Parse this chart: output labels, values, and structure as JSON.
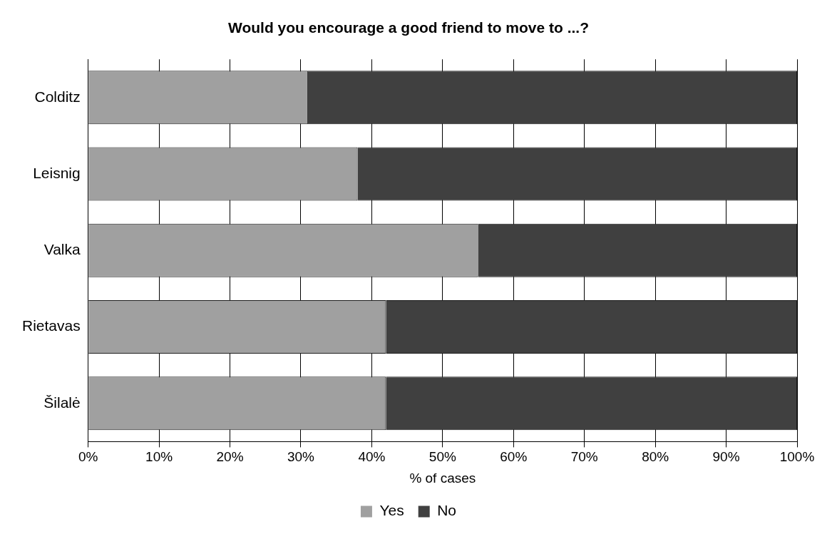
{
  "chart_data": {
    "type": "bar",
    "orientation": "horizontal",
    "stacked": true,
    "title": "Would you encourage a good friend to move to ...?",
    "xlabel": "% of cases",
    "categories": [
      "Colditz",
      "Leisnig",
      "Valka",
      "Rietavas",
      "Šilalė"
    ],
    "series": [
      {
        "name": "Yes",
        "color": "#a0a0a0",
        "values": [
          31,
          38,
          55,
          42,
          42
        ]
      },
      {
        "name": "No",
        "color": "#404040",
        "values": [
          69,
          62,
          45,
          58,
          58
        ]
      }
    ],
    "xlim": [
      0,
      100
    ],
    "xticks": [
      {
        "value": 0,
        "label": "0%"
      },
      {
        "value": 10,
        "label": "10%"
      },
      {
        "value": 20,
        "label": "20%"
      },
      {
        "value": 30,
        "label": "30%"
      },
      {
        "value": 40,
        "label": "40%"
      },
      {
        "value": 50,
        "label": "50%"
      },
      {
        "value": 60,
        "label": "60%"
      },
      {
        "value": 70,
        "label": "70%"
      },
      {
        "value": 80,
        "label": "80%"
      },
      {
        "value": 90,
        "label": "90%"
      },
      {
        "value": 100,
        "label": "100%"
      }
    ],
    "grid": "x",
    "legend": "bottom"
  }
}
